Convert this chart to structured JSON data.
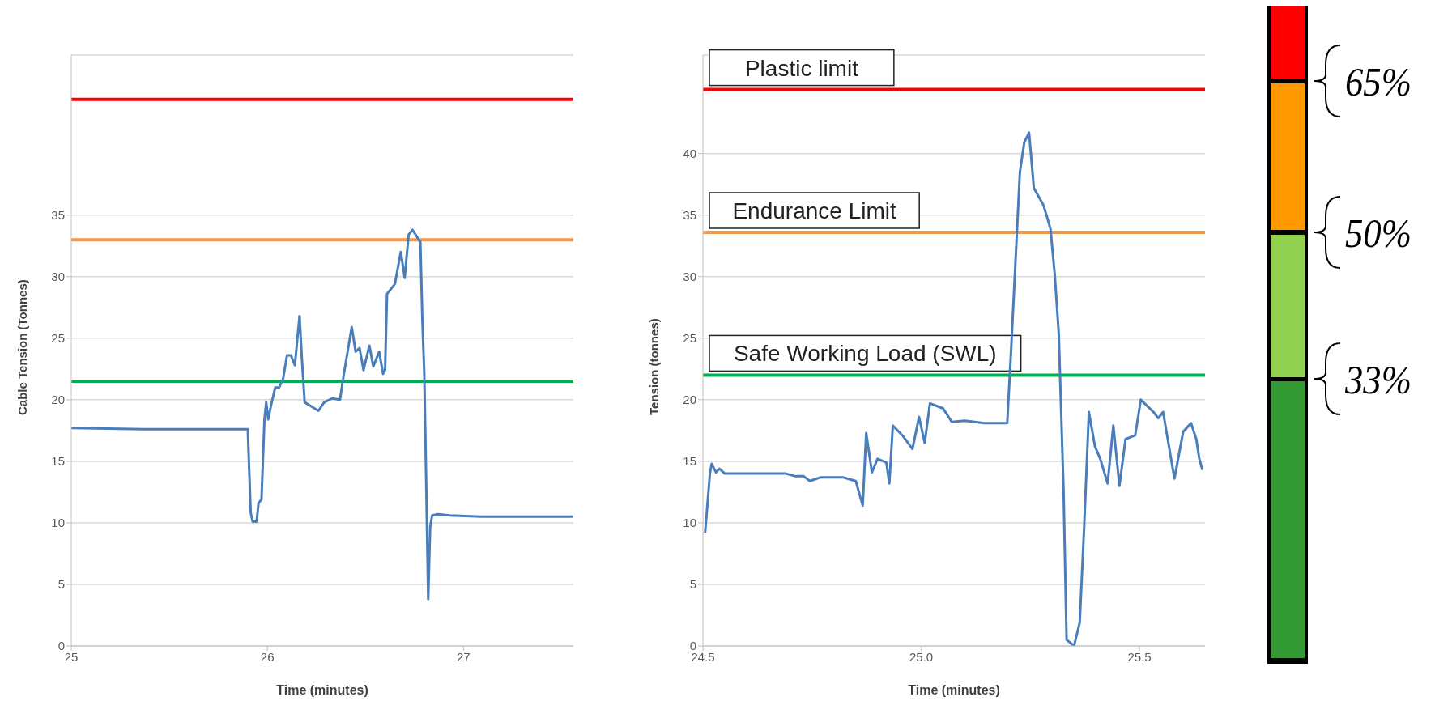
{
  "chart_data": [
    {
      "type": "line",
      "xlabel": "Time (minutes)",
      "ylabel": "Cable Tension (Tonnes)",
      "xlim": [
        25,
        27.56
      ],
      "xticks": [
        25,
        26,
        27
      ],
      "ylim": [
        0,
        48
      ],
      "yticks": [
        0,
        5,
        10,
        15,
        20,
        25,
        30,
        35
      ],
      "grid": "y",
      "marker": "none",
      "line_style": "solid",
      "series": [
        {
          "color": "#4a7ebb",
          "x": [
            25.0,
            25.37,
            25.9,
            25.915,
            25.925,
            25.945,
            25.955,
            25.97,
            25.985,
            25.994,
            26.004,
            26.018,
            26.04,
            26.06,
            26.08,
            26.1,
            26.12,
            26.14,
            26.164,
            26.175,
            26.19,
            26.23,
            26.26,
            26.29,
            26.33,
            26.37,
            26.39,
            26.43,
            26.45,
            26.47,
            26.49,
            26.52,
            26.54,
            26.57,
            26.59,
            26.6,
            26.61,
            26.65,
            26.68,
            26.7,
            26.72,
            26.74,
            26.78,
            26.79,
            26.8,
            26.82,
            26.83,
            26.84,
            26.87,
            26.93,
            27.09,
            27.56
          ],
          "values": [
            17.7,
            17.6,
            17.6,
            10.8,
            10.1,
            10.1,
            11.6,
            11.9,
            18.4,
            19.8,
            18.4,
            19.5,
            21.0,
            21.0,
            21.7,
            23.6,
            23.6,
            22.8,
            26.8,
            23.6,
            19.8,
            19.4,
            19.1,
            19.8,
            20.1,
            20.0,
            22.1,
            25.9,
            23.9,
            24.2,
            22.4,
            24.4,
            22.7,
            23.9,
            22.1,
            22.4,
            28.6,
            29.4,
            32.0,
            29.9,
            33.4,
            33.8,
            32.8,
            26.5,
            22.1,
            3.8,
            9.7,
            10.6,
            10.7,
            10.6,
            10.5,
            10.5
          ]
        }
      ],
      "ref_lines": [
        {
          "axis": "y",
          "value": 44.4,
          "color": "#ff0000"
        },
        {
          "axis": "y",
          "value": 33.0,
          "color": "#f79646"
        },
        {
          "axis": "y",
          "value": 21.5,
          "color": "#00b050"
        }
      ]
    },
    {
      "type": "line",
      "xlabel": "Time (minutes)",
      "ylabel": "Tension (tonnes)",
      "xlim": [
        24.5,
        25.65
      ],
      "xticks": [
        24.5,
        {
          "value": 25,
          "label": "25.0"
        },
        25.5
      ],
      "ylim": [
        0,
        48
      ],
      "yticks": [
        0,
        5,
        10,
        15,
        20,
        25,
        30,
        35,
        40
      ],
      "grid": "y",
      "marker": "none",
      "line_style": "solid",
      "series": [
        {
          "color": "#4a7ebb",
          "x": [
            24.505,
            24.516,
            24.52,
            24.53,
            24.538,
            24.55,
            24.69,
            24.71,
            24.73,
            24.745,
            24.77,
            24.82,
            24.85,
            24.866,
            24.874,
            24.887,
            24.9,
            24.92,
            24.927,
            24.935,
            24.957,
            24.98,
            24.995,
            25.008,
            25.02,
            25.05,
            25.07,
            25.1,
            25.145,
            25.197,
            25.206,
            25.226,
            25.236,
            25.247,
            25.258,
            25.28,
            25.296,
            25.306,
            25.315,
            25.326,
            25.333,
            25.35,
            25.363,
            25.373,
            25.384,
            25.398,
            25.41,
            25.427,
            25.44,
            25.454,
            25.468,
            25.49,
            25.503,
            25.532,
            25.543,
            25.554,
            25.58,
            25.6,
            25.618,
            25.63,
            25.637,
            25.644
          ],
          "values": [
            9.2,
            14.0,
            14.8,
            14.1,
            14.4,
            14.0,
            14.0,
            13.8,
            13.8,
            13.4,
            13.7,
            13.7,
            13.4,
            11.4,
            17.3,
            14.1,
            15.2,
            14.9,
            13.2,
            17.9,
            17.1,
            16.0,
            18.6,
            16.5,
            19.7,
            19.3,
            18.2,
            18.3,
            18.1,
            18.1,
            24.1,
            38.5,
            40.9,
            41.7,
            37.2,
            35.8,
            33.9,
            30.1,
            25.4,
            12.7,
            0.5,
            0.0,
            1.9,
            9.5,
            19.0,
            16.2,
            15.2,
            13.2,
            17.9,
            13.0,
            16.8,
            17.1,
            20.0,
            19.0,
            18.5,
            19.0,
            13.6,
            17.4,
            18.1,
            16.8,
            15.2,
            14.3
          ]
        }
      ],
      "ref_lines": [
        {
          "axis": "y",
          "value": 45.2,
          "color": "#ff0000",
          "label": "Plastic limit"
        },
        {
          "axis": "y",
          "value": 33.6,
          "color": "#f79646",
          "label": "Endurance Limit"
        },
        {
          "axis": "y",
          "value": 22.0,
          "color": "#00b050",
          "label": "Safe Working Load (SWL)"
        }
      ]
    },
    {
      "type": "other",
      "annotations": [
        "65%",
        "50%",
        "33%"
      ],
      "colors": [
        "#ff0000",
        "#ff9900",
        "#92d050",
        "#339933"
      ]
    }
  ]
}
